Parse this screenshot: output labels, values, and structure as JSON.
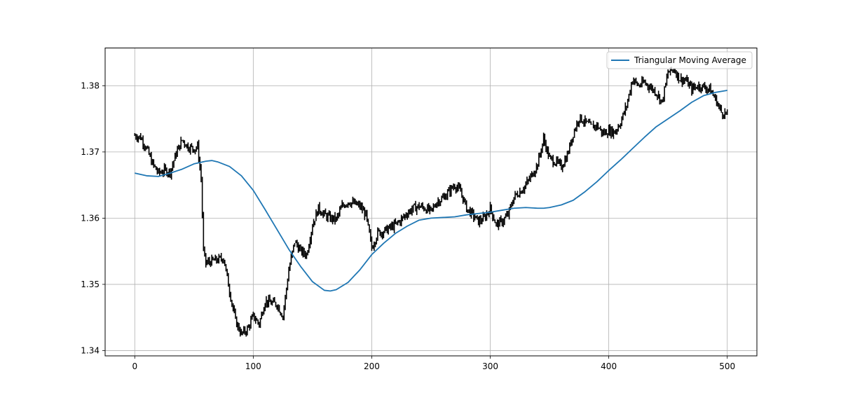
{
  "chart_data": {
    "type": "line",
    "title": "",
    "xlabel": "",
    "ylabel": "",
    "xlim": [
      -25,
      525
    ],
    "ylim": [
      1.3392,
      1.3857
    ],
    "xticks": [
      0,
      100,
      200,
      300,
      400,
      500
    ],
    "yticks": [
      1.34,
      1.35,
      1.36,
      1.37,
      1.38
    ],
    "xtick_labels": [
      "0",
      "100",
      "200",
      "300",
      "400",
      "500"
    ],
    "ytick_labels": [
      "1.34",
      "1.35",
      "1.36",
      "1.37",
      "1.38"
    ],
    "grid": true,
    "legend": {
      "placement": "top-right",
      "entries": [
        "Triangular Moving Average"
      ]
    },
    "series": [
      {
        "name": "",
        "kind": "price-bars",
        "color": "#000000",
        "x": [
          0,
          5,
          10,
          15,
          20,
          25,
          30,
          35,
          40,
          45,
          50,
          53,
          56,
          58,
          60,
          65,
          70,
          75,
          80,
          85,
          90,
          95,
          100,
          105,
          110,
          115,
          120,
          125,
          130,
          135,
          140,
          145,
          150,
          155,
          160,
          165,
          170,
          175,
          180,
          185,
          190,
          195,
          200,
          205,
          210,
          215,
          220,
          225,
          230,
          235,
          240,
          245,
          250,
          255,
          260,
          265,
          270,
          275,
          280,
          285,
          290,
          295,
          300,
          305,
          310,
          315,
          320,
          325,
          330,
          335,
          340,
          345,
          350,
          355,
          360,
          365,
          370,
          375,
          380,
          385,
          390,
          395,
          400,
          405,
          410,
          415,
          420,
          425,
          430,
          435,
          440,
          445,
          450,
          455,
          460,
          465,
          470,
          475,
          480,
          485,
          490,
          495,
          500
        ],
        "y": [
          1.3725,
          1.3722,
          1.3705,
          1.3682,
          1.3668,
          1.3672,
          1.367,
          1.3698,
          1.3718,
          1.3708,
          1.3705,
          1.3708,
          1.366,
          1.355,
          1.3532,
          1.3535,
          1.3537,
          1.354,
          1.349,
          1.3445,
          1.3425,
          1.3432,
          1.3452,
          1.344,
          1.3475,
          1.3472,
          1.347,
          1.3452,
          1.3522,
          1.3565,
          1.355,
          1.3545,
          1.359,
          1.3615,
          1.3605,
          1.36,
          1.3598,
          1.3618,
          1.3625,
          1.3622,
          1.3618,
          1.3605,
          1.3555,
          1.3578,
          1.358,
          1.3585,
          1.359,
          1.3598,
          1.3608,
          1.3615,
          1.3618,
          1.3615,
          1.361,
          1.3625,
          1.363,
          1.364,
          1.365,
          1.364,
          1.3615,
          1.3605,
          1.3595,
          1.36,
          1.3615,
          1.359,
          1.3595,
          1.3605,
          1.3632,
          1.364,
          1.365,
          1.3665,
          1.3682,
          1.372,
          1.369,
          1.3685,
          1.3678,
          1.3695,
          1.3728,
          1.3752,
          1.3745,
          1.3738,
          1.374,
          1.3728,
          1.3732,
          1.373,
          1.3745,
          1.377,
          1.381,
          1.38,
          1.3805,
          1.3798,
          1.379,
          1.3775,
          1.382,
          1.3825,
          1.381,
          1.3808,
          1.3795,
          1.38,
          1.3798,
          1.3795,
          1.378,
          1.376,
          1.3757
        ]
      },
      {
        "name": "Triangular Moving Average",
        "kind": "line",
        "color": "#1f77b4",
        "x": [
          0,
          10,
          20,
          30,
          40,
          50,
          60,
          65,
          70,
          80,
          90,
          100,
          110,
          120,
          130,
          140,
          150,
          160,
          165,
          170,
          180,
          190,
          200,
          210,
          220,
          230,
          240,
          250,
          260,
          270,
          280,
          290,
          300,
          310,
          320,
          330,
          340,
          345,
          350,
          360,
          370,
          380,
          390,
          400,
          410,
          420,
          430,
          440,
          450,
          460,
          470,
          480,
          490,
          500
        ],
        "y": [
          1.3668,
          1.3664,
          1.3663,
          1.3668,
          1.3674,
          1.3682,
          1.3686,
          1.3687,
          1.3685,
          1.3678,
          1.3664,
          1.3642,
          1.3613,
          1.3583,
          1.3553,
          1.3527,
          1.3504,
          1.3491,
          1.349,
          1.3492,
          1.3503,
          1.3522,
          1.3545,
          1.3562,
          1.3577,
          1.3588,
          1.3597,
          1.36,
          1.3601,
          1.3602,
          1.3605,
          1.3607,
          1.3609,
          1.3612,
          1.3615,
          1.3616,
          1.3615,
          1.3615,
          1.3616,
          1.362,
          1.3627,
          1.364,
          1.3655,
          1.3672,
          1.3688,
          1.3705,
          1.3722,
          1.3738,
          1.375,
          1.3762,
          1.3775,
          1.3785,
          1.379,
          1.3793
        ]
      }
    ]
  }
}
